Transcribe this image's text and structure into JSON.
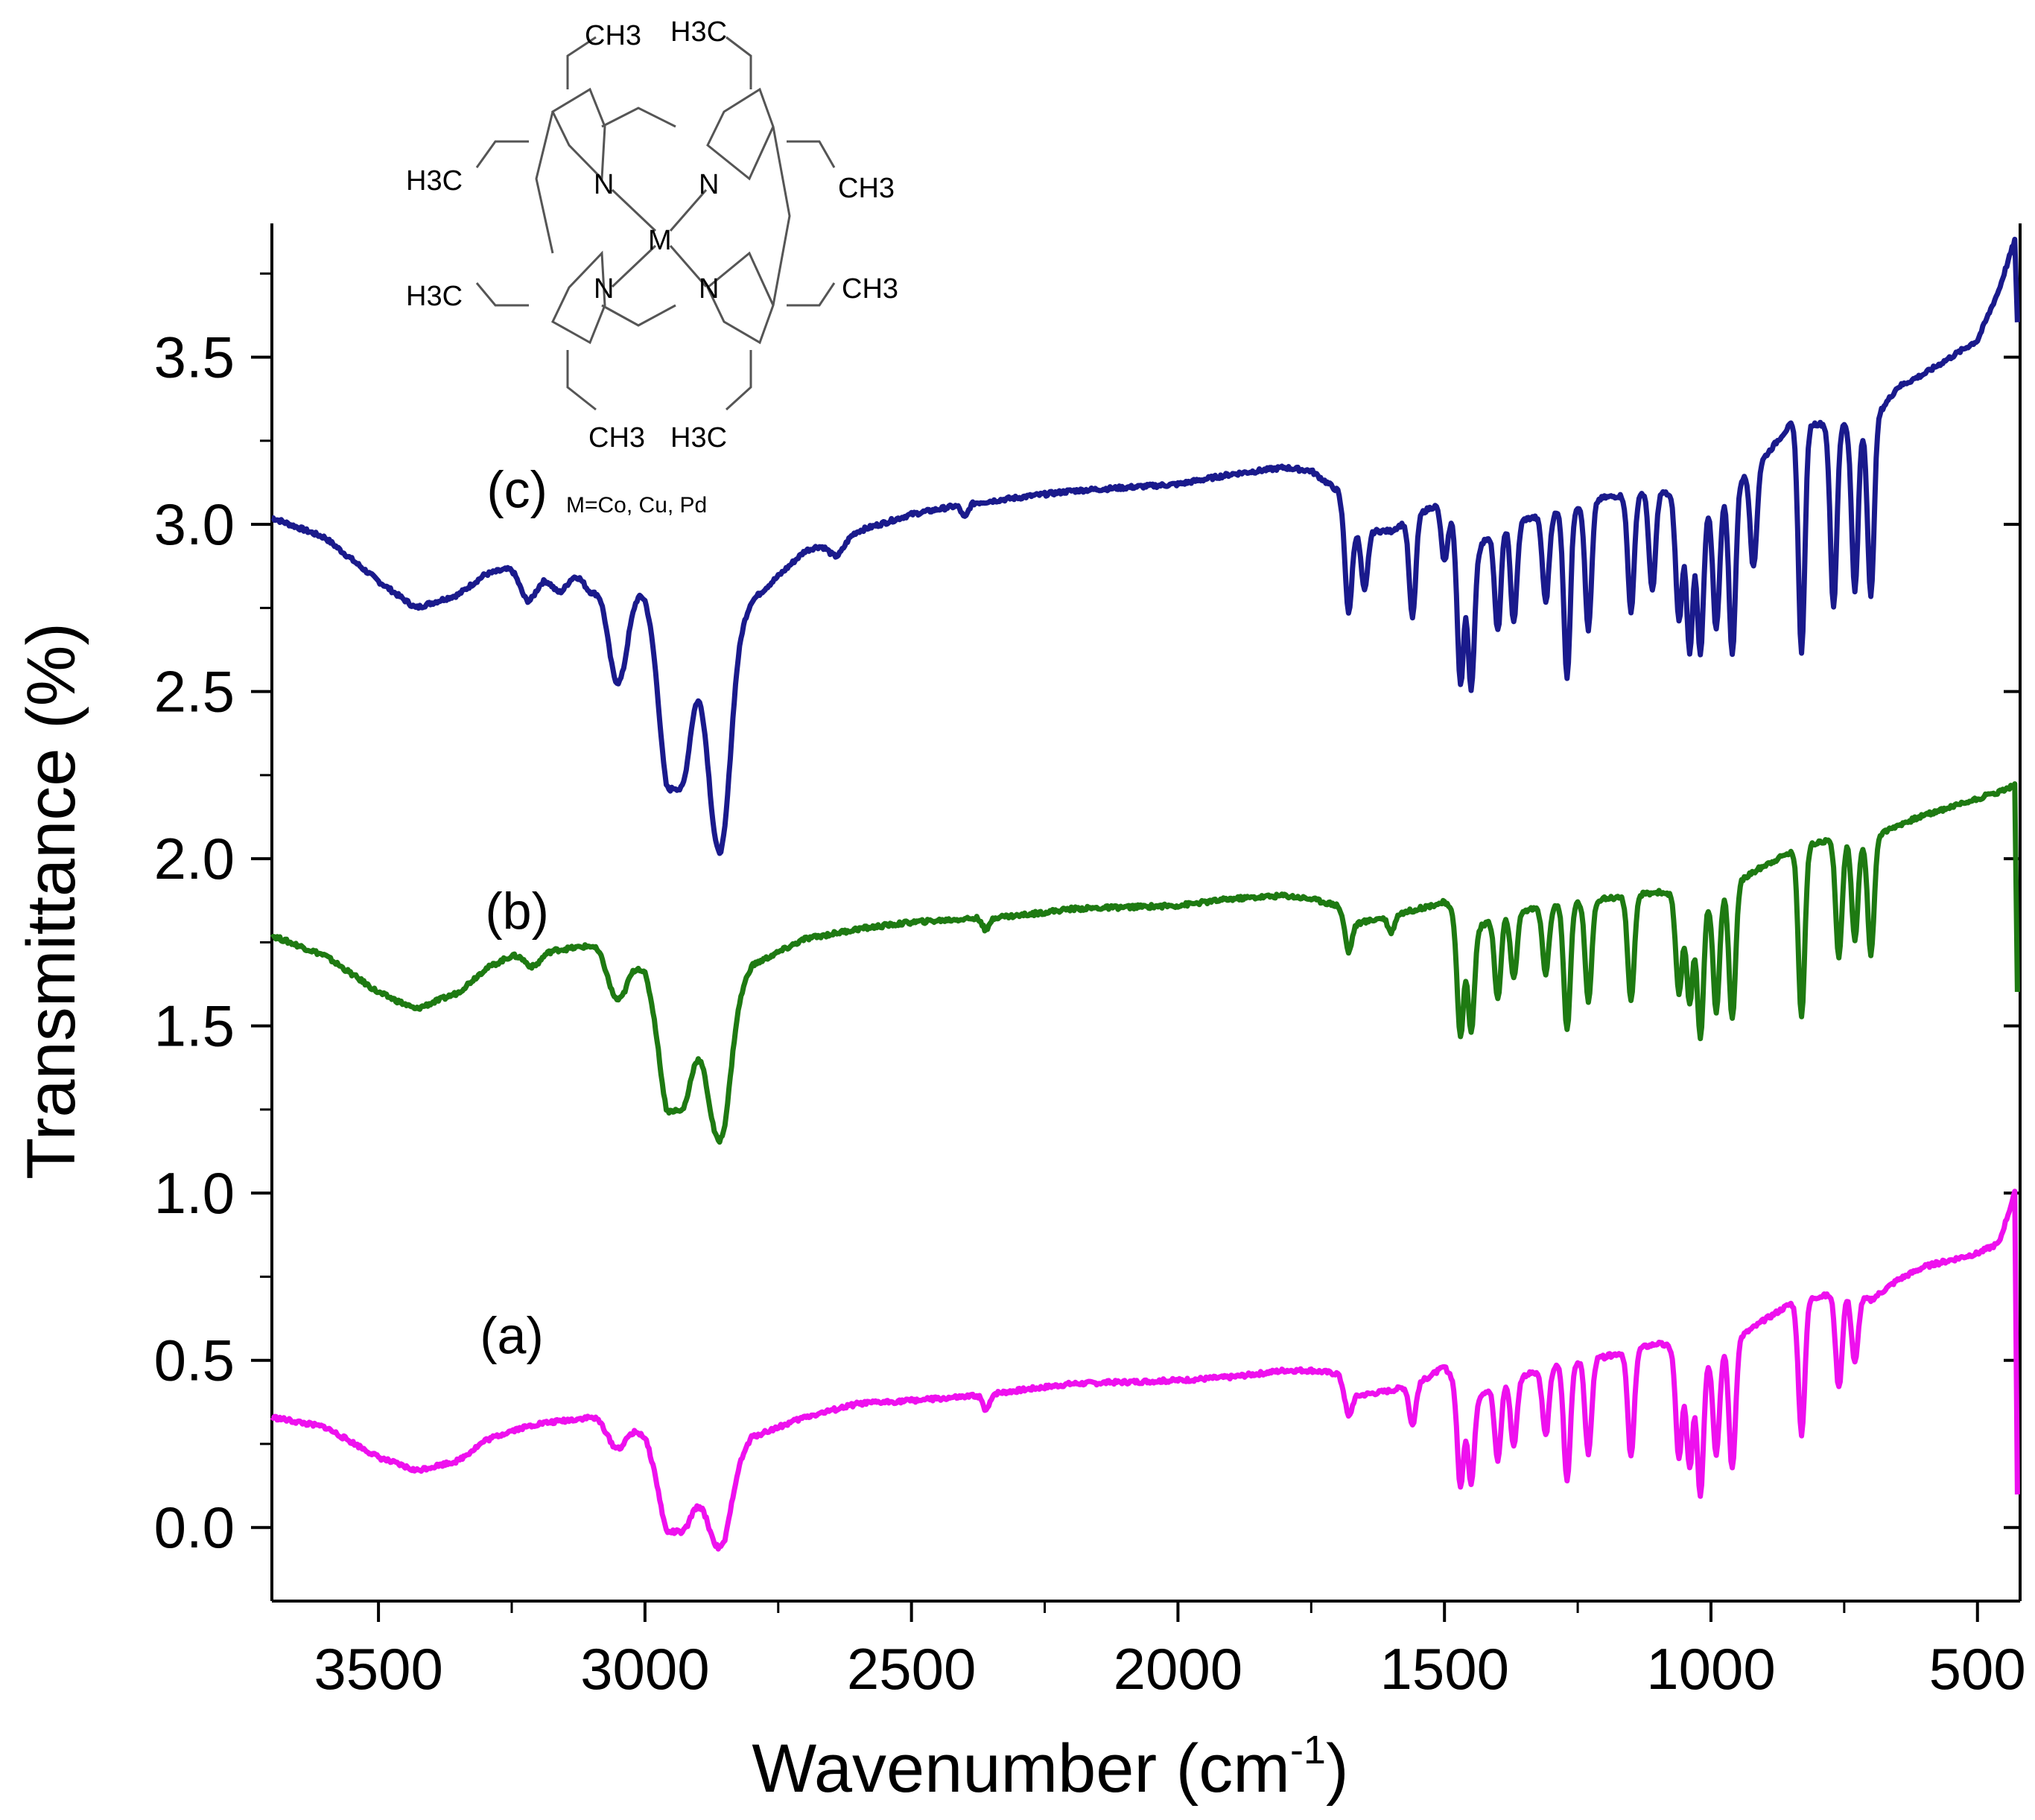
{
  "chart_data": {
    "type": "line",
    "title": "",
    "xlabel": "Wavenumber (cm",
    "xlabel_superscript": "-1",
    "xlabel_close": ")",
    "ylabel": "Transmittance (%)",
    "xlim": [
      3700,
      420
    ],
    "ylim": [
      -0.22,
      3.9
    ],
    "x_reversed": true,
    "x_ticks": [
      3500,
      3000,
      2500,
      2000,
      1500,
      1000,
      500
    ],
    "x_tick_labels": [
      "3500",
      "3000",
      "2500",
      "2000",
      "1500",
      "1000",
      "500"
    ],
    "y_ticks": [
      0.0,
      0.5,
      1.0,
      1.5,
      2.0,
      2.5,
      3.0,
      3.5
    ],
    "y_tick_labels": [
      "0.0",
      "0.5",
      "1.0",
      "1.5",
      "2.0",
      "2.5",
      "3.0",
      "3.5"
    ],
    "grid": false,
    "legend": "none",
    "inset": {
      "description": "octaethylporphyrin metal complex structure",
      "labels": {
        "ch3_top_left": "CH3",
        "h3c_top_right": "H3C",
        "h3c_upper_left": "H3C",
        "ch3_upper_right": "CH3",
        "h3c_lower_left": "H3C",
        "ch3_lower_right": "CH3",
        "ch3_bottom_left": "CH3",
        "h3c_bottom_right": "H3C",
        "nitrogen": "N",
        "metal": "M"
      },
      "caption": "M=Co, Cu, Pd"
    },
    "series": [
      {
        "name": "(c)",
        "color": "#1a1a8c",
        "label_pos": [
          3240,
          3.05
        ],
        "baseline": [
          [
            3700,
            3.02
          ],
          [
            3600,
            2.96
          ],
          [
            3500,
            2.83
          ],
          [
            3430,
            2.75
          ],
          [
            3350,
            2.79
          ],
          [
            3300,
            2.85
          ],
          [
            3250,
            2.87
          ],
          [
            3200,
            2.84
          ],
          [
            3100,
            2.86
          ],
          [
            3030,
            2.85
          ],
          [
            3000,
            2.78
          ],
          [
            2960,
            2.55
          ],
          [
            2920,
            2.52
          ],
          [
            2880,
            2.55
          ],
          [
            2850,
            2.58
          ],
          [
            2800,
            2.77
          ],
          [
            2700,
            2.92
          ],
          [
            2600,
            2.98
          ],
          [
            2500,
            3.03
          ],
          [
            2400,
            3.06
          ],
          [
            2300,
            3.08
          ],
          [
            2200,
            3.1
          ],
          [
            2000,
            3.12
          ],
          [
            1900,
            3.15
          ],
          [
            1800,
            3.17
          ],
          [
            1750,
            3.16
          ],
          [
            1700,
            3.1
          ],
          [
            1680,
            2.98
          ],
          [
            1600,
            2.98
          ],
          [
            1550,
            3.03
          ],
          [
            1500,
            3.07
          ],
          [
            1450,
            2.9
          ],
          [
            1400,
            3.0
          ],
          [
            1300,
            3.03
          ],
          [
            1200,
            3.08
          ],
          [
            1100,
            3.1
          ],
          [
            1000,
            3.05
          ],
          [
            900,
            3.2
          ],
          [
            850,
            3.3
          ],
          [
            800,
            3.3
          ],
          [
            750,
            3.3
          ],
          [
            700,
            3.3
          ],
          [
            650,
            3.41
          ],
          [
            600,
            3.45
          ],
          [
            500,
            3.55
          ],
          [
            460,
            3.7
          ],
          [
            430,
            3.85
          ],
          [
            425,
            3.6
          ]
        ],
        "peaks": [
          [
            3220,
            0.08
          ],
          [
            3160,
            0.05
          ],
          [
            3100,
            0.06
          ],
          [
            3060,
            0.22
          ],
          [
            3040,
            0.2
          ],
          [
            2960,
            0.3
          ],
          [
            2930,
            0.28
          ],
          [
            2870,
            0.35
          ],
          [
            2850,
            0.36
          ],
          [
            2640,
            0.05
          ],
          [
            2400,
            0.04
          ],
          [
            1680,
            0.25
          ],
          [
            1650,
            0.18
          ],
          [
            1560,
            0.3
          ],
          [
            1500,
            0.18
          ],
          [
            1470,
            0.45
          ],
          [
            1450,
            0.4
          ],
          [
            1400,
            0.32
          ],
          [
            1370,
            0.3
          ],
          [
            1310,
            0.26
          ],
          [
            1270,
            0.5
          ],
          [
            1230,
            0.38
          ],
          [
            1150,
            0.35
          ],
          [
            1110,
            0.3
          ],
          [
            1060,
            0.37
          ],
          [
            1040,
            0.45
          ],
          [
            1020,
            0.45
          ],
          [
            990,
            0.38
          ],
          [
            960,
            0.5
          ],
          [
            920,
            0.3
          ],
          [
            830,
            0.68
          ],
          [
            770,
            0.55
          ],
          [
            730,
            0.5
          ],
          [
            700,
            0.52
          ]
        ]
      },
      {
        "name": "(b)",
        "color": "#1e7a12",
        "label_pos": [
          3240,
          1.79
        ],
        "baseline": [
          [
            3700,
            1.77
          ],
          [
            3600,
            1.71
          ],
          [
            3500,
            1.6
          ],
          [
            3430,
            1.55
          ],
          [
            3350,
            1.6
          ],
          [
            3300,
            1.67
          ],
          [
            3250,
            1.71
          ],
          [
            3200,
            1.72
          ],
          [
            3100,
            1.74
          ],
          [
            3030,
            1.72
          ],
          [
            3000,
            1.66
          ],
          [
            2960,
            1.45
          ],
          [
            2920,
            1.42
          ],
          [
            2880,
            1.45
          ],
          [
            2850,
            1.5
          ],
          [
            2800,
            1.68
          ],
          [
            2700,
            1.76
          ],
          [
            2600,
            1.79
          ],
          [
            2500,
            1.81
          ],
          [
            2400,
            1.82
          ],
          [
            2300,
            1.83
          ],
          [
            2200,
            1.85
          ],
          [
            2000,
            1.86
          ],
          [
            1900,
            1.88
          ],
          [
            1800,
            1.89
          ],
          [
            1750,
            1.88
          ],
          [
            1700,
            1.86
          ],
          [
            1680,
            1.8
          ],
          [
            1600,
            1.83
          ],
          [
            1550,
            1.85
          ],
          [
            1500,
            1.87
          ],
          [
            1450,
            1.78
          ],
          [
            1400,
            1.83
          ],
          [
            1300,
            1.86
          ],
          [
            1200,
            1.88
          ],
          [
            1100,
            1.9
          ],
          [
            1000,
            1.88
          ],
          [
            900,
            1.98
          ],
          [
            850,
            2.02
          ],
          [
            800,
            2.05
          ],
          [
            750,
            2.06
          ],
          [
            700,
            2.06
          ],
          [
            650,
            2.1
          ],
          [
            600,
            2.13
          ],
          [
            500,
            2.18
          ],
          [
            460,
            2.2
          ],
          [
            430,
            2.22
          ],
          [
            425,
            1.6
          ]
        ],
        "peaks": [
          [
            3210,
            0.04
          ],
          [
            3060,
            0.1
          ],
          [
            3040,
            0.09
          ],
          [
            2960,
            0.18
          ],
          [
            2930,
            0.16
          ],
          [
            2870,
            0.2
          ],
          [
            2850,
            0.22
          ],
          [
            2360,
            0.04
          ],
          [
            1680,
            0.08
          ],
          [
            1600,
            0.05
          ],
          [
            1470,
            0.35
          ],
          [
            1450,
            0.3
          ],
          [
            1400,
            0.25
          ],
          [
            1370,
            0.2
          ],
          [
            1310,
            0.2
          ],
          [
            1270,
            0.38
          ],
          [
            1230,
            0.3
          ],
          [
            1150,
            0.32
          ],
          [
            1060,
            0.3
          ],
          [
            1040,
            0.32
          ],
          [
            1020,
            0.42
          ],
          [
            990,
            0.35
          ],
          [
            960,
            0.4
          ],
          [
            830,
            0.5
          ],
          [
            760,
            0.35
          ],
          [
            730,
            0.3
          ],
          [
            700,
            0.35
          ]
        ]
      },
      {
        "name": "(a)",
        "color": "#ee10ee",
        "label_pos": [
          3250,
          0.52
        ],
        "baseline": [
          [
            3700,
            0.33
          ],
          [
            3600,
            0.3
          ],
          [
            3500,
            0.21
          ],
          [
            3430,
            0.17
          ],
          [
            3350,
            0.2
          ],
          [
            3300,
            0.26
          ],
          [
            3250,
            0.29
          ],
          [
            3200,
            0.31
          ],
          [
            3100,
            0.33
          ],
          [
            3030,
            0.32
          ],
          [
            3000,
            0.27
          ],
          [
            2960,
            0.1
          ],
          [
            2920,
            0.07
          ],
          [
            2880,
            0.09
          ],
          [
            2850,
            0.12
          ],
          [
            2800,
            0.27
          ],
          [
            2700,
            0.33
          ],
          [
            2600,
            0.37
          ],
          [
            2500,
            0.38
          ],
          [
            2400,
            0.39
          ],
          [
            2300,
            0.41
          ],
          [
            2200,
            0.43
          ],
          [
            2000,
            0.44
          ],
          [
            1900,
            0.45
          ],
          [
            1800,
            0.47
          ],
          [
            1750,
            0.47
          ],
          [
            1700,
            0.46
          ],
          [
            1680,
            0.39
          ],
          [
            1600,
            0.41
          ],
          [
            1550,
            0.43
          ],
          [
            1500,
            0.48
          ],
          [
            1450,
            0.38
          ],
          [
            1400,
            0.43
          ],
          [
            1300,
            0.48
          ],
          [
            1200,
            0.51
          ],
          [
            1100,
            0.55
          ],
          [
            1000,
            0.51
          ],
          [
            900,
            0.62
          ],
          [
            850,
            0.67
          ],
          [
            800,
            0.69
          ],
          [
            750,
            0.7
          ],
          [
            700,
            0.68
          ],
          [
            650,
            0.74
          ],
          [
            600,
            0.78
          ],
          [
            500,
            0.82
          ],
          [
            460,
            0.85
          ],
          [
            430,
            1.0
          ],
          [
            425,
            0.1
          ]
        ],
        "peaks": [
          [
            3060,
            0.06
          ],
          [
            3040,
            0.05
          ],
          [
            2960,
            0.1
          ],
          [
            2930,
            0.08
          ],
          [
            2870,
            0.1
          ],
          [
            2850,
            0.12
          ],
          [
            2360,
            0.05
          ],
          [
            1680,
            0.06
          ],
          [
            1560,
            0.12
          ],
          [
            1470,
            0.3
          ],
          [
            1450,
            0.25
          ],
          [
            1400,
            0.23
          ],
          [
            1370,
            0.2
          ],
          [
            1310,
            0.2
          ],
          [
            1270,
            0.35
          ],
          [
            1230,
            0.28
          ],
          [
            1150,
            0.32
          ],
          [
            1060,
            0.33
          ],
          [
            1040,
            0.35
          ],
          [
            1020,
            0.42
          ],
          [
            990,
            0.3
          ],
          [
            960,
            0.38
          ],
          [
            830,
            0.4
          ],
          [
            760,
            0.28
          ],
          [
            730,
            0.2
          ]
        ]
      }
    ]
  }
}
